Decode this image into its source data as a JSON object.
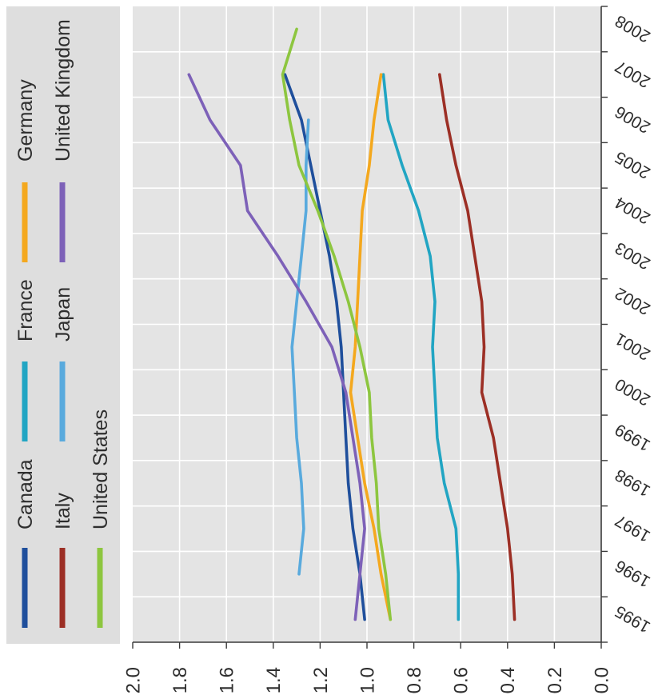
{
  "chart_data": {
    "type": "line",
    "categories": [
      "1995",
      "1996",
      "1997",
      "1998",
      "1999",
      "2000",
      "2001",
      "2002",
      "2003",
      "2004",
      "2005",
      "2006",
      "2007",
      "2008"
    ],
    "yticks": [
      "0.0",
      "0.2",
      "0.4",
      "0.6",
      "0.8",
      "1.0",
      "1.2",
      "1.4",
      "1.6",
      "1.8",
      "2.0"
    ],
    "ylim": [
      0,
      2.0
    ],
    "grid": true,
    "legend": "left",
    "series": [
      {
        "name": "Canada",
        "color": "#1f4f9c",
        "values": [
          1.01,
          1.03,
          1.06,
          1.08,
          1.09,
          1.1,
          1.11,
          1.13,
          1.16,
          1.2,
          1.24,
          1.28,
          1.35,
          null
        ]
      },
      {
        "name": "France",
        "color": "#21a5c3",
        "values": [
          0.61,
          0.61,
          0.62,
          0.67,
          0.7,
          0.71,
          0.72,
          0.71,
          0.73,
          0.78,
          0.85,
          0.91,
          0.93,
          null
        ]
      },
      {
        "name": "Germany",
        "color": "#f4a81e",
        "values": [
          0.9,
          0.94,
          0.97,
          1.01,
          1.04,
          1.07,
          1.05,
          1.04,
          1.03,
          1.02,
          0.99,
          0.97,
          0.94,
          null
        ]
      },
      {
        "name": "Italy",
        "color": "#9c2f25",
        "values": [
          0.37,
          0.38,
          0.4,
          0.43,
          0.46,
          0.51,
          0.5,
          0.51,
          0.54,
          0.57,
          0.62,
          0.66,
          0.69,
          null
        ]
      },
      {
        "name": "Japan",
        "color": "#59aadd",
        "values": [
          null,
          1.29,
          1.27,
          1.28,
          1.3,
          1.31,
          1.32,
          1.3,
          1.28,
          1.26,
          1.26,
          1.25,
          null,
          null
        ]
      },
      {
        "name": "United Kingdom",
        "color": "#7d61b8",
        "values": [
          1.05,
          1.03,
          1.01,
          1.03,
          1.06,
          1.09,
          1.15,
          1.26,
          1.38,
          1.51,
          1.54,
          1.67,
          1.76,
          null
        ]
      },
      {
        "name": "United States",
        "color": "#8dc63f",
        "values": [
          0.9,
          0.92,
          0.95,
          0.96,
          0.98,
          0.99,
          1.03,
          1.08,
          1.14,
          1.21,
          1.29,
          1.33,
          1.36,
          1.3
        ]
      }
    ]
  }
}
